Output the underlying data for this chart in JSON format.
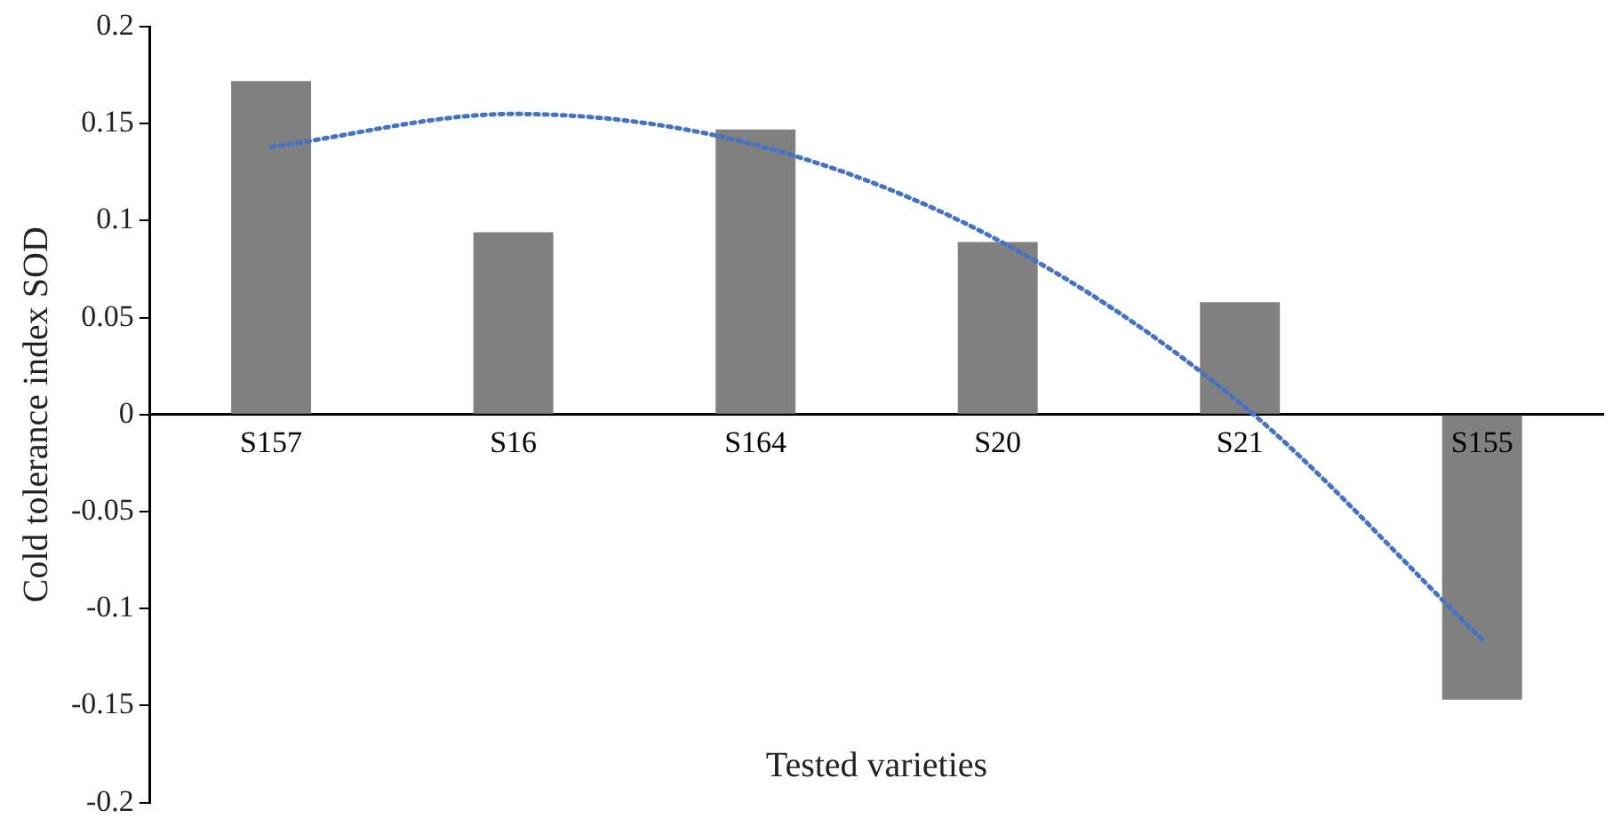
{
  "chart_data": {
    "type": "bar",
    "xlabel": "Tested varieties",
    "ylabel": "Cold tolerance index SOD",
    "categories": [
      "S157",
      "S16",
      "S164",
      "S20",
      "S21",
      "S155"
    ],
    "series": [
      {
        "color": "#808080",
        "values": [
          0.172,
          0.094,
          0.147,
          0.089,
          0.058,
          -0.147
        ]
      },
      {
        "type": "line",
        "color": "#4472c4",
        "line_style": "dotted",
        "marker": "none",
        "values": [
          0.138,
          0.155,
          0.139,
          0.09,
          0.006,
          -0.116
        ]
      }
    ],
    "ylim": [
      -0.2,
      0.2
    ],
    "yticks": [
      -0.2,
      -0.15,
      -0.1,
      -0.05,
      0,
      0.05,
      0.1,
      0.15,
      0.2
    ],
    "grid": false,
    "legend": false
  }
}
